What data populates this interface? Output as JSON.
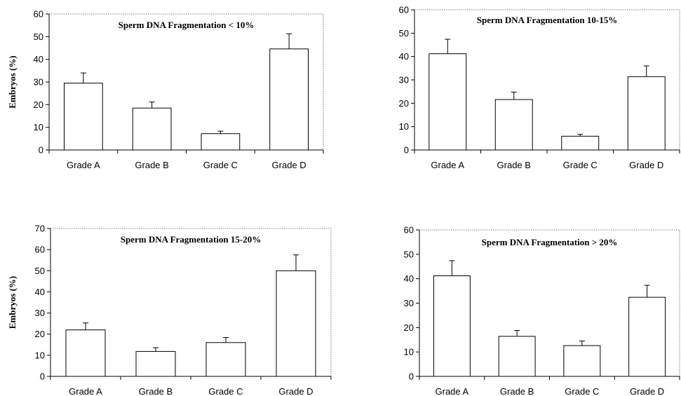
{
  "chart_data": [
    {
      "type": "bar",
      "title": "Sperm DNA Fragmentation < 10%",
      "ylabel": "Embryos (%)",
      "xlabel": "",
      "categories": [
        "Grade A",
        "Grade B",
        "Grade C",
        "Grade D"
      ],
      "values": [
        29.5,
        18.5,
        7.2,
        44.6
      ],
      "errors": [
        4.5,
        2.7,
        1.1,
        6.7
      ],
      "ylim": [
        0,
        60
      ],
      "yticks": [
        0,
        10,
        20,
        30,
        40,
        50,
        60
      ],
      "bar_color": "#ffffff",
      "edge_color": "#000000"
    },
    {
      "type": "bar",
      "title": "Sperm DNA Fragmentation 10-15%",
      "ylabel": "",
      "xlabel": "",
      "categories": [
        "Grade A",
        "Grade B",
        "Grade C",
        "Grade D"
      ],
      "values": [
        41.2,
        21.6,
        5.9,
        31.4
      ],
      "errors": [
        6.2,
        3.2,
        0.8,
        4.6
      ],
      "ylim": [
        0,
        60
      ],
      "yticks": [
        0,
        10,
        20,
        30,
        40,
        50,
        60
      ],
      "bar_color": "#ffffff",
      "edge_color": "#000000"
    },
    {
      "type": "bar",
      "title": "Sperm DNA Fragmentation 15-20%",
      "ylabel": "Embryos (%)",
      "xlabel": "",
      "categories": [
        "Grade A",
        "Grade B",
        "Grade C",
        "Grade D"
      ],
      "values": [
        22.0,
        11.8,
        16.0,
        50.0
      ],
      "errors": [
        3.3,
        1.8,
        2.4,
        7.5
      ],
      "ylim": [
        0,
        70
      ],
      "yticks": [
        0,
        10,
        20,
        30,
        40,
        50,
        60,
        70
      ],
      "bar_color": "#ffffff",
      "edge_color": "#000000"
    },
    {
      "type": "bar",
      "title": "Sperm DNA Fragmentation > 20%",
      "ylabel": "",
      "xlabel": "",
      "categories": [
        "Grade A",
        "Grade B",
        "Grade C",
        "Grade D"
      ],
      "values": [
        41.2,
        16.4,
        12.6,
        32.4
      ],
      "errors": [
        6.2,
        2.4,
        1.9,
        4.9
      ],
      "ylim": [
        0,
        60
      ],
      "yticks": [
        0,
        10,
        20,
        30,
        40,
        50,
        60
      ],
      "bar_color": "#ffffff",
      "edge_color": "#000000"
    }
  ]
}
